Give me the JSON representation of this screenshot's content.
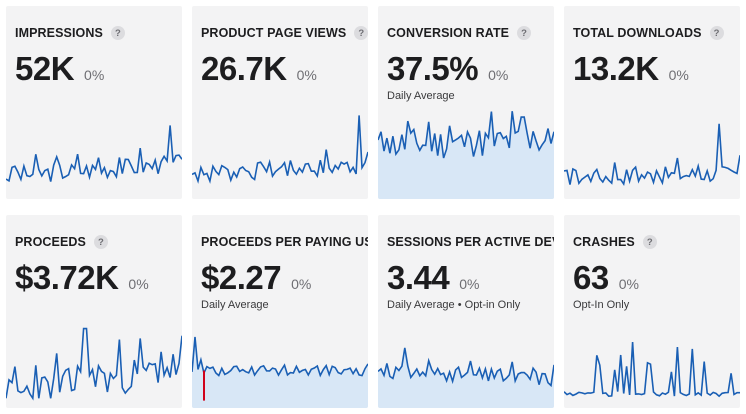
{
  "cards": [
    {
      "title": "IMPRESSIONS",
      "value": "52K",
      "change": "0%",
      "subtitle": ""
    },
    {
      "title": "PRODUCT PAGE VIEWS",
      "value": "26.7K",
      "change": "0%",
      "subtitle": ""
    },
    {
      "title": "CONVERSION RATE",
      "value": "37.5%",
      "change": "0%",
      "subtitle": "Daily Average"
    },
    {
      "title": "TOTAL DOWNLOADS",
      "value": "13.2K",
      "change": "0%",
      "subtitle": ""
    },
    {
      "title": "PROCEEDS",
      "value": "$3.72K",
      "change": "0%",
      "subtitle": ""
    },
    {
      "title": "PROCEEDS PER PAYING USER",
      "value": "$2.27",
      "change": "0%",
      "subtitle": "Daily Average"
    },
    {
      "title": "SESSIONS PER ACTIVE DEVICE",
      "value": "3.44",
      "change": "0%",
      "subtitle": "Daily Average • Opt-in Only"
    },
    {
      "title": "CRASHES",
      "value": "63",
      "change": "0%",
      "subtitle": "Opt-In Only"
    }
  ],
  "help_glyph": "?",
  "colors": {
    "line": "#1a5fb4",
    "fill": "#cfe3f7",
    "negative": "#d0021b"
  }
}
